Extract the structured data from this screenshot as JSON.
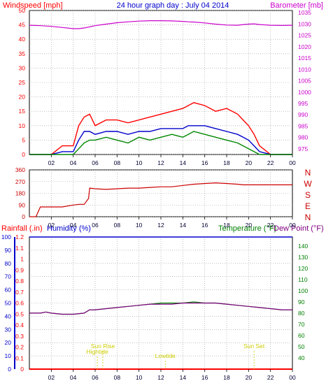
{
  "title": "24 hour graph day : July 04 2014",
  "colors": {
    "wind": "#ff0000",
    "avg_wind": "#0000cc",
    "gust_alt": "#008800",
    "barometer": "#cc00cc",
    "direction": "#cc0000",
    "rain": "#ff0000",
    "humidity": "#0000cc",
    "temperature": "#008000",
    "dew": "#800080",
    "sun": "#cccc00",
    "grid": "#999999",
    "frame": "#000000",
    "axis_labels_dark": "#000000"
  },
  "x_ticks": [
    "02",
    "04",
    "06",
    "08",
    "10",
    "12",
    "14",
    "16",
    "18",
    "20",
    "22",
    "00"
  ],
  "chart_data": [
    {
      "type": "line",
      "title": "24 hour graph day : July 04 2014",
      "left_axis_label": "Windspeed [mph]",
      "right_axis_label": "Barometer [mb]",
      "left_ticks": [
        0,
        5,
        10,
        15,
        20,
        25,
        30,
        35,
        40,
        45,
        50
      ],
      "right_ticks": [
        975,
        980,
        985,
        990,
        995,
        1000,
        1005,
        1010,
        1015,
        1020,
        1025,
        1030,
        1035
      ],
      "ylim_left": [
        0,
        50
      ],
      "ylim_right": [
        972.5,
        1036
      ],
      "x_hours": [
        0,
        1,
        2,
        3,
        4,
        4.5,
        5,
        5.5,
        6,
        7,
        8,
        9,
        10,
        11,
        12,
        13,
        14,
        14.5,
        15,
        16,
        17,
        18,
        19,
        19.5,
        20,
        20.5,
        21,
        22,
        23,
        24
      ],
      "series": [
        {
          "name": "Windspeed max",
          "values": [
            0,
            0,
            0,
            3,
            3,
            10,
            13,
            14,
            10,
            12,
            12,
            11,
            12,
            13,
            14,
            15,
            16,
            17,
            18,
            17,
            15,
            16,
            14,
            12,
            10,
            7,
            3,
            0,
            0,
            0
          ]
        },
        {
          "name": "Windspeed avg",
          "values": [
            0,
            0,
            0,
            1,
            1,
            5,
            8,
            8,
            7,
            8,
            8,
            7,
            8,
            8,
            9,
            9,
            9,
            10,
            10,
            10,
            9,
            8,
            7,
            6,
            5,
            3,
            1,
            0,
            0,
            0
          ]
        },
        {
          "name": "Windspeed min",
          "values": [
            0,
            0,
            0,
            0,
            0,
            2,
            4,
            5,
            5,
            6,
            5,
            4,
            6,
            5,
            6,
            7,
            6,
            7,
            8,
            7,
            6,
            5,
            4,
            3,
            2,
            1,
            0,
            0,
            0,
            0
          ]
        },
        {
          "name": "Barometer",
          "values": [
            1029.5,
            1029.3,
            1029,
            1028.5,
            1028,
            1028,
            1028.3,
            1028.8,
            1029.3,
            1030,
            1030.6,
            1031,
            1031.3,
            1031.5,
            1031.5,
            1031.4,
            1031.2,
            1031,
            1030.9,
            1030.5,
            1030,
            1029.6,
            1029.5,
            1029.8,
            1030,
            1030.1,
            1029.8,
            1029.5,
            1029.4,
            1029.5
          ]
        }
      ]
    },
    {
      "type": "line",
      "left_ticks": [
        0,
        90,
        180,
        270,
        360
      ],
      "right_labels": [
        "N",
        "W",
        "S",
        "E",
        "N"
      ],
      "ylim": [
        0,
        360
      ],
      "x_hours": [
        0,
        0.6,
        1,
        2,
        3,
        4,
        4.5,
        5,
        5.4,
        5.5,
        6,
        7,
        8,
        9,
        10,
        11,
        12,
        13,
        14,
        15,
        16,
        17,
        18,
        19,
        19.5,
        20,
        21,
        22,
        23,
        24
      ],
      "series": [
        {
          "name": "Wind direction",
          "values": [
            0,
            0,
            75,
            75,
            75,
            90,
            95,
            95,
            140,
            220,
            215,
            210,
            215,
            220,
            220,
            225,
            230,
            230,
            240,
            250,
            255,
            260,
            255,
            250,
            245,
            245,
            245,
            245,
            245,
            245
          ]
        }
      ]
    },
    {
      "type": "line",
      "header_labels": [
        "Rainfall (.in)",
        "Humidity (%)",
        "Temperature (°F)",
        "Dew Point (°F)"
      ],
      "humidity_ticks": [
        0,
        10,
        20,
        30,
        40,
        50,
        60,
        70,
        80,
        90,
        100
      ],
      "rain_ticks": [
        0,
        0.1,
        0.2,
        0.3,
        0.4,
        0.5,
        0.6,
        0.7,
        0.8,
        0.9,
        1,
        1.1,
        1.2
      ],
      "temp_ticks": [
        40,
        50,
        60,
        70,
        80,
        90,
        100,
        110,
        120,
        130,
        140
      ],
      "ylim_humidity": [
        0,
        100
      ],
      "ylim_rain": [
        0,
        1.2
      ],
      "ylim_temp": [
        30,
        148
      ],
      "x_hours": [
        0,
        1,
        1.5,
        2,
        3,
        4,
        5,
        5.5,
        6,
        7,
        8,
        9,
        10,
        11,
        12,
        13,
        14,
        15,
        16,
        17,
        18,
        19,
        20,
        21,
        22,
        23,
        24
      ],
      "series": [
        {
          "name": "Temperature",
          "values": [
            80,
            80,
            81,
            80,
            79,
            79,
            80,
            83,
            83,
            84,
            85,
            86,
            87,
            88,
            89,
            89,
            89,
            90,
            89,
            89,
            88,
            87,
            86,
            85,
            84,
            83,
            83
          ]
        },
        {
          "name": "Dew Point",
          "values": [
            80,
            80,
            81,
            80,
            79,
            79,
            80,
            83,
            83,
            84,
            85,
            86,
            87,
            88,
            88,
            88,
            89,
            89,
            89,
            89,
            88,
            87,
            86,
            85,
            84,
            83,
            83
          ]
        },
        {
          "name": "Humidity",
          "values": [
            100,
            100,
            100,
            100,
            100,
            100,
            100,
            100,
            100,
            100,
            100,
            100,
            100,
            100,
            100,
            100,
            100,
            100,
            100,
            100,
            100,
            100,
            100,
            100,
            100,
            100,
            100
          ]
        },
        {
          "name": "Rainfall",
          "values": [
            0,
            0,
            0,
            0,
            0,
            0,
            0,
            0,
            0,
            0,
            0,
            0,
            0,
            0,
            0,
            0,
            0,
            0,
            0,
            0,
            0,
            0,
            0,
            0,
            0,
            0,
            0
          ]
        }
      ],
      "annotations": [
        {
          "text": "Sun Rise",
          "hour": 6.7
        },
        {
          "text": "Hightide",
          "hour": 6.2
        },
        {
          "text": "Lowtide",
          "hour": 12.4
        },
        {
          "text": "Sun Set",
          "hour": 20.5
        }
      ]
    }
  ]
}
